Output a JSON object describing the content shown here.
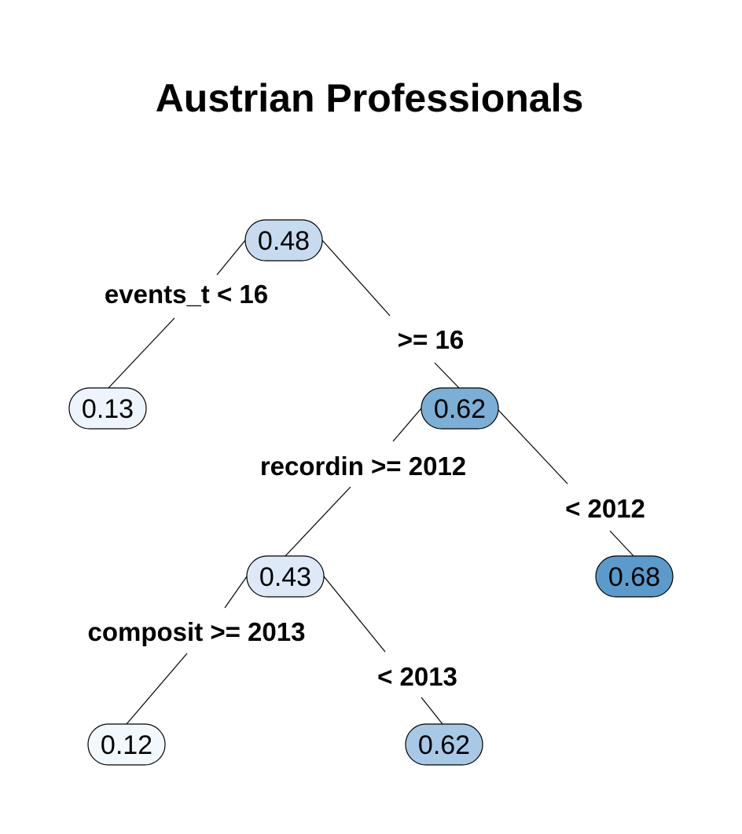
{
  "title": "Austrian Professionals",
  "nodes": {
    "root": {
      "value": "0.48",
      "fill": "#c6dbef"
    },
    "n_left": {
      "value": "0.13",
      "fill": "#eef4fb"
    },
    "n_right": {
      "value": "0.62",
      "fill": "#7bafd6"
    },
    "n_rl": {
      "value": "0.43",
      "fill": "#dde9f6"
    },
    "n_rr": {
      "value": "0.68",
      "fill": "#5b9bcc"
    },
    "n_rll": {
      "value": "0.12",
      "fill": "#f3f8fd"
    },
    "n_rlr": {
      "value": "0.62",
      "fill": "#a7c9e6"
    }
  },
  "splits": {
    "root_left": "events_t < 16",
    "root_right": ">= 16",
    "right_left": "recordin >= 2012",
    "right_right": "< 2012",
    "rl_left": "composit >= 2013",
    "rl_right": "< 2013"
  }
}
